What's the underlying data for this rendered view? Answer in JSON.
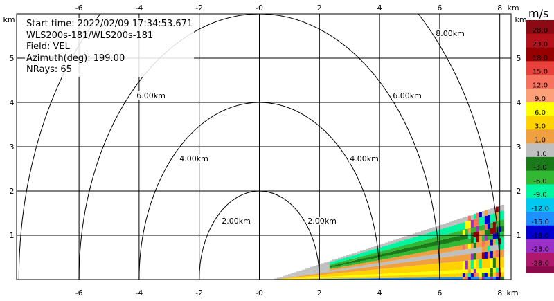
{
  "info": {
    "start_time": "Start time: 2022/02/09 17:34:53.671",
    "instrument": "WLS200s-181/WLS200s-181",
    "field": "Field: VEL",
    "azimuth": "Azimuth(deg): 199.00",
    "nrays": "NRays: 65"
  },
  "colorbar": {
    "unit": "m/s",
    "levels": [
      {
        "label": "28.0",
        "color": "#8b0a14"
      },
      {
        "label": "23.0",
        "color": "#b3121c"
      },
      {
        "label": "18.0",
        "color": "#960000"
      },
      {
        "label": "15.0",
        "color": "#e8413c"
      },
      {
        "label": "12.0",
        "color": "#f6725e"
      },
      {
        "label": "9.0",
        "color": "#fca07a"
      },
      {
        "label": "6.0",
        "color": "#ffff00"
      },
      {
        "label": "3.0",
        "color": "#ffd200"
      },
      {
        "label": "1.0",
        "color": "#f0a040"
      },
      {
        "label": "-1.0",
        "color": "#bfbfbf"
      },
      {
        "label": "-3.0",
        "color": "#1a7a1a"
      },
      {
        "label": "-6.0",
        "color": "#33b833"
      },
      {
        "label": "-9.0",
        "color": "#00f5a0"
      },
      {
        "label": "-12.0",
        "color": "#00c8f0"
      },
      {
        "label": "-15.0",
        "color": "#1e90ff"
      },
      {
        "label": "-18.0",
        "color": "#0000d0"
      },
      {
        "label": "-23.0",
        "color": "#9b30c8"
      },
      {
        "label": "-28.0",
        "color": "#b0186e"
      }
    ],
    "bottom_color": "#8b0a4a"
  },
  "chart_data": {
    "type": "heatmap",
    "field": "VEL",
    "units": "m/s",
    "xlabel": "km",
    "ylabel": "km",
    "xlim": [
      -8,
      8.1
    ],
    "ylim": [
      0,
      5.9
    ],
    "x_ticks": [
      "-6",
      "-4",
      "-2",
      "-0",
      "2",
      "4",
      "6",
      "8"
    ],
    "y_ticks": [
      "1",
      "2",
      "3",
      "4",
      "5"
    ],
    "axis_unit_label": "km",
    "grid": true,
    "range_rings": [
      {
        "radius_km": 2,
        "label": "2.00km"
      },
      {
        "radius_km": 4,
        "label": "4.00km"
      },
      {
        "radius_km": 6,
        "label": "6.00km"
      },
      {
        "radius_km": 8,
        "label": "8.00km"
      }
    ],
    "sector": {
      "start_km": 0.4,
      "end_km": 8.1,
      "top_height_km": 1.7
    }
  }
}
